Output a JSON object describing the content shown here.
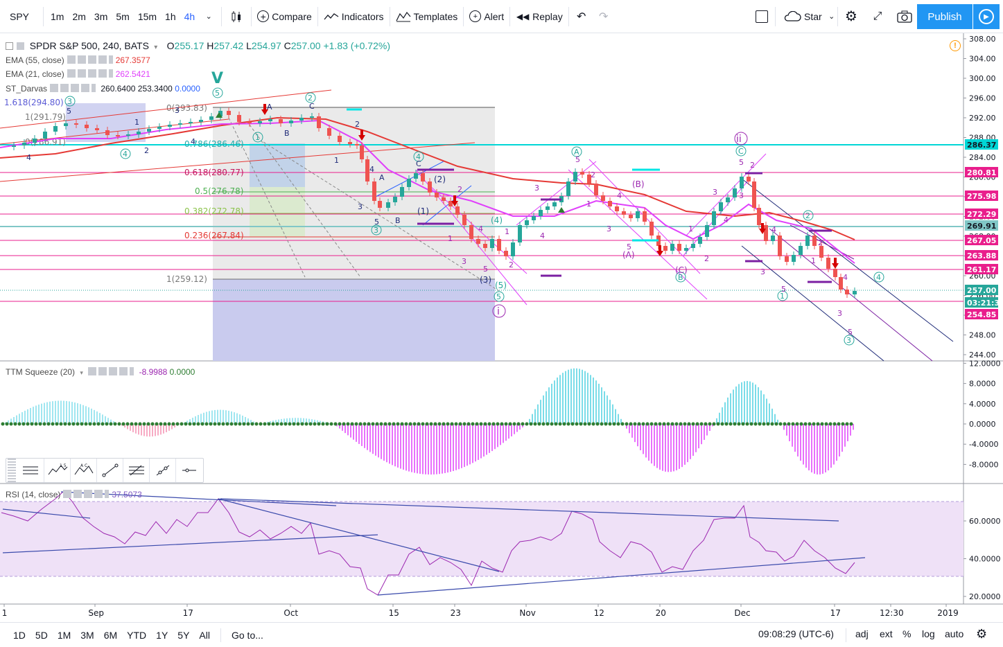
{
  "toolbar": {
    "symbol": "SPY",
    "intervals": [
      "1m",
      "2m",
      "3m",
      "5m",
      "15m",
      "1h",
      "4h"
    ],
    "compare": "Compare",
    "indicators": "Indicators",
    "templates": "Templates",
    "alert": "Alert",
    "replay": "Replay",
    "chart_style": "Star",
    "publish": "Publish"
  },
  "legend": {
    "title": "SPDR S&P 500, 240, BATS",
    "open_k": "O",
    "open": "255.17",
    "high_k": "H",
    "high": "257.42",
    "low_k": "L",
    "low": "254.97",
    "close_k": "C",
    "close": "257.00",
    "change": "+1.83 (+0.72%)",
    "ema55_label": "EMA (55, close)",
    "ema55_value": "267.3577",
    "ema21_label": "EMA (21, close)",
    "ema21_value": "262.5421",
    "darvas_label": "ST_Darvas",
    "darvas_v1": "260.6400",
    "darvas_v2": "253.3400",
    "darvas_v3": "0.0000",
    "ttm_label": "TTM Squeeze (20)",
    "ttm_v1": "-8.9988",
    "ttm_v2": "0.0000",
    "rsi_label": "RSI (14, close)",
    "rsi_value": "37.5073"
  },
  "price_axis": {
    "ticks": [
      "308.00",
      "304.00",
      "300.00",
      "296.00",
      "292.00",
      "288.00",
      "284.00",
      "280.00",
      "276.00",
      "272.00",
      "268.00",
      "264.00",
      "260.00",
      "256.00",
      "252.00",
      "248.00",
      "244.00"
    ],
    "tags": [
      {
        "label": "286.37",
        "color": "#00d6d6"
      },
      {
        "label": "280.81",
        "color": "#e91e8c"
      },
      {
        "label": "275.98",
        "color": "#e91e8c"
      },
      {
        "label": "272.29",
        "color": "#e91e8c"
      },
      {
        "label": "269.91",
        "color": "#81c7c7"
      },
      {
        "label": "267.05",
        "color": "#e91e8c"
      },
      {
        "label": "263.88",
        "color": "#e91e8c"
      },
      {
        "label": "261.17",
        "color": "#e91e8c"
      },
      {
        "label": "257.00",
        "color": "#26a69a"
      },
      {
        "label": "03:21:31",
        "color": "#26a69a"
      },
      {
        "label": "254.85",
        "color": "#e91e8c"
      }
    ]
  },
  "ttm_axis": [
    "12.0000",
    "8.0000",
    "4.0000",
    "0.0000",
    "-4.0000",
    "-8.0000"
  ],
  "rsi_axis": [
    "60.0000",
    "40.0000",
    "20.0000"
  ],
  "time_axis": [
    "1",
    "Sep",
    "17",
    "Oct",
    "15",
    "23",
    "Nov",
    "12",
    "20",
    "Dec",
    "17",
    "12:30",
    "2019"
  ],
  "fib": [
    {
      "label": "1.618(294.80)"
    },
    {
      "label": "1(291.79)"
    },
    {
      "label": "0(293.83)"
    },
    {
      "label": "0(286.91)"
    },
    {
      "label": "0.786(286.46)"
    },
    {
      "label": "0.618(280.77)"
    },
    {
      "label": "0.5(276.78)"
    },
    {
      "label": "0.382(272.78)"
    },
    {
      "label": "0.236(267.84)"
    },
    {
      "label": "1(259.12)"
    }
  ],
  "waves": {
    "big_v": "V",
    "small_i": "i",
    "small_ii": "ii",
    "A": "A",
    "B": "(B)",
    "C": "C",
    "paren_A": "(A)",
    "paren_C": "(C)",
    "paren_1": "(1)",
    "paren_2": "(2)",
    "paren_3": "(3)",
    "paren_4": "(4)",
    "paren_5": "(5)"
  },
  "bottombar": {
    "ranges": [
      "1D",
      "5D",
      "1M",
      "3M",
      "6M",
      "YTD",
      "1Y",
      "5Y",
      "All"
    ],
    "goto": "Go to...",
    "clock": "09:08:29 (UTC-6)",
    "adj": "adj",
    "ext": "ext",
    "pct": "%",
    "log": "log",
    "auto": "auto"
  }
}
